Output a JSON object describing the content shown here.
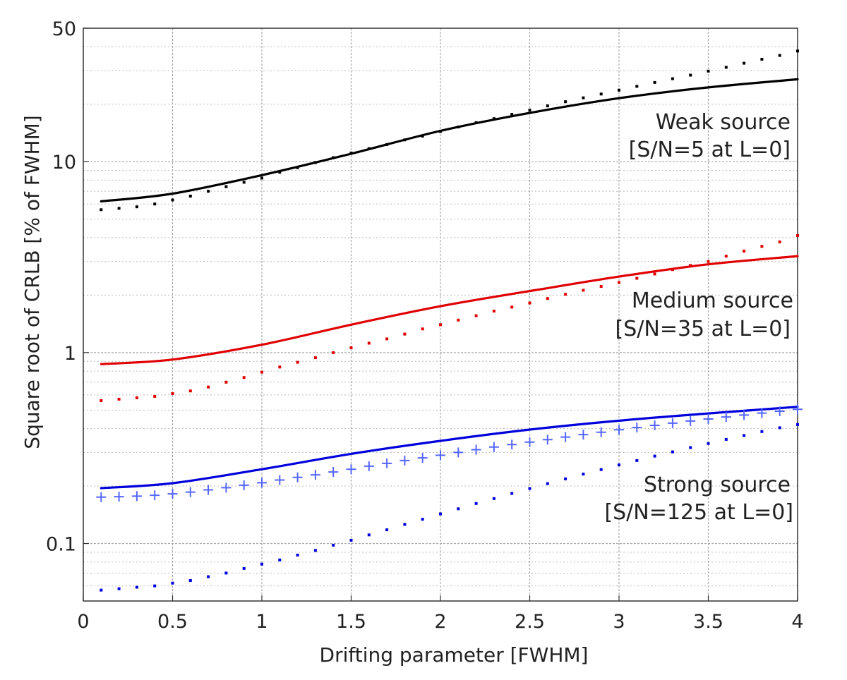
{
  "chart_data": {
    "type": "line",
    "xlabel": "Drifting parameter [FWHM]",
    "ylabel": "Square root of CRLB [% of FWHM]",
    "xlim": [
      0,
      4
    ],
    "ylim": [
      0.05,
      50
    ],
    "yscale": "log",
    "grid": true,
    "x_ticks": [
      0,
      0.5,
      1,
      1.5,
      2,
      2.5,
      3,
      3.5,
      4
    ],
    "x_tick_labels": [
      "0",
      "0.5",
      "1",
      "1.5",
      "2",
      "2.5",
      "3",
      "3.5",
      "4"
    ],
    "y_ticks": [
      0.1,
      1,
      10,
      50
    ],
    "y_tick_labels": [
      "0.1",
      "1",
      "10",
      "50"
    ],
    "series": [
      {
        "name": "weak-solid",
        "group": "weak",
        "style": "solid",
        "color": "#000000",
        "x": [
          0.1,
          0.5,
          1.0,
          1.5,
          2.0,
          2.5,
          3.0,
          3.5,
          4.0
        ],
        "values": [
          6.2,
          6.8,
          8.5,
          11.0,
          14.5,
          18.0,
          21.5,
          24.5,
          27.0
        ]
      },
      {
        "name": "weak-dotted",
        "group": "weak",
        "style": "dots",
        "color": "#000000",
        "x": [
          0.1,
          0.2,
          0.3,
          0.4,
          0.5,
          0.6,
          0.7,
          0.8,
          0.9,
          1.0,
          1.1,
          1.2,
          1.3,
          1.4,
          1.5,
          1.6,
          1.7,
          1.8,
          1.9,
          2.0,
          2.1,
          2.2,
          2.3,
          2.4,
          2.5,
          2.6,
          2.7,
          2.8,
          2.9,
          3.0,
          3.1,
          3.2,
          3.3,
          3.4,
          3.5,
          3.6,
          3.7,
          3.8,
          3.9,
          4.0
        ],
        "values": [
          5.6,
          5.7,
          5.8,
          6.0,
          6.3,
          6.6,
          7.0,
          7.4,
          7.8,
          8.2,
          8.8,
          9.3,
          9.9,
          10.5,
          11.1,
          11.7,
          12.3,
          13.0,
          13.6,
          14.4,
          15.2,
          16.0,
          16.8,
          17.7,
          18.6,
          19.6,
          20.6,
          21.6,
          22.6,
          23.7,
          24.8,
          26.0,
          27.2,
          28.4,
          29.8,
          31.2,
          32.8,
          34.4,
          36.0,
          38.0
        ]
      },
      {
        "name": "medium-solid",
        "group": "medium",
        "style": "solid",
        "color": "#e00000",
        "x": [
          0.1,
          0.5,
          1.0,
          1.5,
          2.0,
          2.5,
          3.0,
          3.5,
          4.0
        ],
        "values": [
          0.87,
          0.92,
          1.1,
          1.4,
          1.75,
          2.1,
          2.5,
          2.9,
          3.2
        ]
      },
      {
        "name": "medium-dotted",
        "group": "medium",
        "style": "dots",
        "color": "#e00000",
        "x": [
          0.1,
          0.2,
          0.3,
          0.4,
          0.5,
          0.6,
          0.7,
          0.8,
          0.9,
          1.0,
          1.1,
          1.2,
          1.3,
          1.4,
          1.5,
          1.6,
          1.7,
          1.8,
          1.9,
          2.0,
          2.1,
          2.2,
          2.3,
          2.4,
          2.5,
          2.6,
          2.7,
          2.8,
          2.9,
          3.0,
          3.1,
          3.2,
          3.3,
          3.4,
          3.5,
          3.6,
          3.7,
          3.8,
          3.9,
          4.0
        ],
        "values": [
          0.56,
          0.57,
          0.58,
          0.59,
          0.61,
          0.63,
          0.66,
          0.7,
          0.74,
          0.79,
          0.84,
          0.89,
          0.94,
          1.0,
          1.06,
          1.12,
          1.18,
          1.25,
          1.33,
          1.4,
          1.48,
          1.56,
          1.65,
          1.73,
          1.82,
          1.92,
          2.02,
          2.12,
          2.22,
          2.33,
          2.45,
          2.58,
          2.72,
          2.86,
          3.0,
          3.2,
          3.4,
          3.6,
          3.8,
          4.1
        ]
      },
      {
        "name": "strong-solid",
        "group": "strong",
        "style": "solid",
        "color": "#0000dd",
        "x": [
          0.1,
          0.5,
          1.0,
          1.5,
          2.0,
          2.5,
          3.0,
          3.5,
          4.0
        ],
        "values": [
          0.195,
          0.207,
          0.245,
          0.295,
          0.345,
          0.395,
          0.44,
          0.48,
          0.52
        ]
      },
      {
        "name": "strong-plus",
        "group": "strong",
        "style": "plus",
        "color": "#5566ff",
        "x": [
          0.1,
          0.2,
          0.3,
          0.4,
          0.5,
          0.6,
          0.7,
          0.8,
          0.9,
          1.0,
          1.1,
          1.2,
          1.3,
          1.4,
          1.5,
          1.6,
          1.7,
          1.8,
          1.9,
          2.0,
          2.1,
          2.2,
          2.3,
          2.4,
          2.5,
          2.6,
          2.7,
          2.8,
          2.9,
          3.0,
          3.1,
          3.2,
          3.3,
          3.4,
          3.5,
          3.6,
          3.7,
          3.8,
          3.9,
          4.0
        ],
        "values": [
          0.175,
          0.176,
          0.177,
          0.179,
          0.182,
          0.186,
          0.191,
          0.196,
          0.202,
          0.208,
          0.215,
          0.222,
          0.229,
          0.237,
          0.245,
          0.254,
          0.263,
          0.272,
          0.281,
          0.29,
          0.3,
          0.31,
          0.32,
          0.33,
          0.34,
          0.35,
          0.361,
          0.372,
          0.383,
          0.394,
          0.405,
          0.416,
          0.427,
          0.438,
          0.449,
          0.46,
          0.471,
          0.482,
          0.493,
          0.505
        ]
      },
      {
        "name": "strong-dotted",
        "group": "strong",
        "style": "dots",
        "color": "#0000dd",
        "x": [
          0.1,
          0.2,
          0.3,
          0.4,
          0.5,
          0.6,
          0.7,
          0.8,
          0.9,
          1.0,
          1.1,
          1.2,
          1.3,
          1.4,
          1.5,
          1.6,
          1.7,
          1.8,
          1.9,
          2.0,
          2.1,
          2.2,
          2.3,
          2.4,
          2.5,
          2.6,
          2.7,
          2.8,
          2.9,
          3.0,
          3.1,
          3.2,
          3.3,
          3.4,
          3.5,
          3.6,
          3.7,
          3.8,
          3.9,
          4.0
        ],
        "values": [
          0.057,
          0.058,
          0.059,
          0.06,
          0.062,
          0.064,
          0.067,
          0.07,
          0.074,
          0.078,
          0.082,
          0.087,
          0.092,
          0.098,
          0.104,
          0.111,
          0.118,
          0.126,
          0.134,
          0.143,
          0.152,
          0.162,
          0.172,
          0.183,
          0.194,
          0.206,
          0.218,
          0.231,
          0.244,
          0.258,
          0.272,
          0.287,
          0.302,
          0.318,
          0.334,
          0.351,
          0.368,
          0.386,
          0.404,
          0.42
        ]
      }
    ],
    "annotations": [
      {
        "name": "annotation-weak-title",
        "text": "Weak source"
      },
      {
        "name": "annotation-weak-sn",
        "text": "[S/N=5 at L=0]"
      },
      {
        "name": "annotation-medium-title",
        "text": "Medium source"
      },
      {
        "name": "annotation-medium-sn",
        "text": "[S/N=35 at L=0]"
      },
      {
        "name": "annotation-strong-title",
        "text": "Strong source"
      },
      {
        "name": "annotation-strong-sn",
        "text": "[S/N=125 at L=0]"
      }
    ]
  }
}
